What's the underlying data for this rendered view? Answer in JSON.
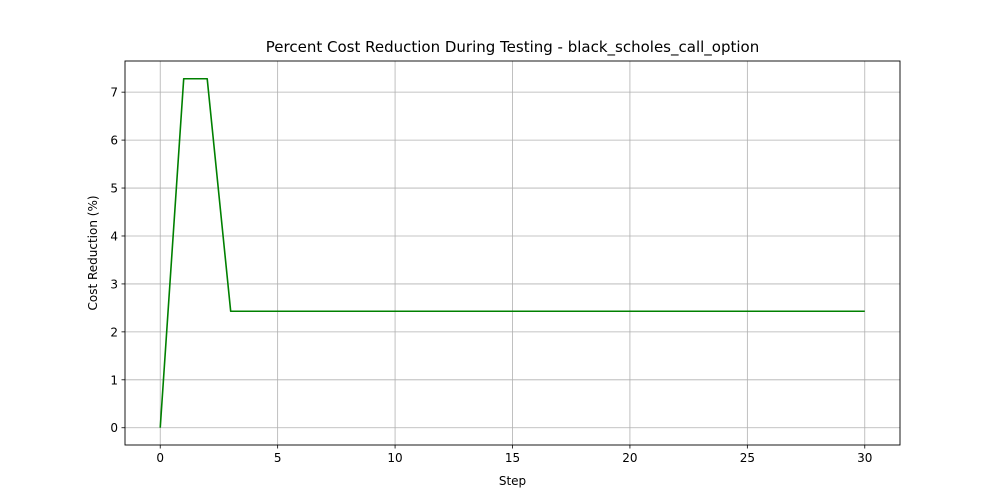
{
  "chart_data": {
    "type": "line",
    "title": "Percent Cost Reduction During Testing - black_scholes_call_option",
    "xlabel": "Step",
    "ylabel": "Cost Reduction (%)",
    "xlim": [
      -1.5,
      31.5
    ],
    "ylim": [
      -0.36,
      7.65
    ],
    "xticks": [
      0,
      5,
      10,
      15,
      20,
      25,
      30
    ],
    "yticks": [
      0,
      1,
      2,
      3,
      4,
      5,
      6,
      7
    ],
    "grid": true,
    "legend": "none",
    "series": [
      {
        "color": "#008000",
        "x": [
          0,
          1,
          2,
          3,
          4,
          5,
          6,
          7,
          8,
          9,
          10,
          11,
          12,
          13,
          14,
          15,
          16,
          17,
          18,
          19,
          20,
          21,
          22,
          23,
          24,
          25,
          26,
          27,
          28,
          29,
          30
        ],
        "y": [
          0,
          7.28,
          7.28,
          2.43,
          2.43,
          2.43,
          2.43,
          2.43,
          2.43,
          2.43,
          2.43,
          2.43,
          2.43,
          2.43,
          2.43,
          2.43,
          2.43,
          2.43,
          2.43,
          2.43,
          2.43,
          2.43,
          2.43,
          2.43,
          2.43,
          2.43,
          2.43,
          2.43,
          2.43,
          2.43,
          2.43
        ]
      }
    ]
  }
}
